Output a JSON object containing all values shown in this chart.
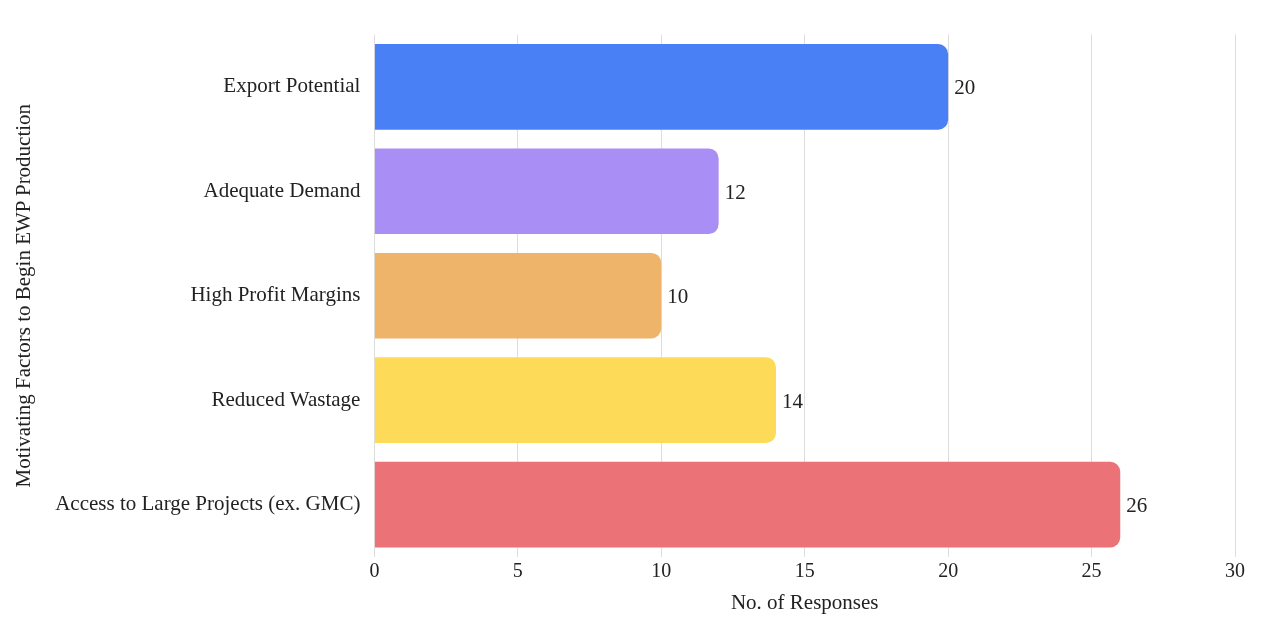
{
  "chart_data": {
    "type": "bar",
    "orientation": "horizontal",
    "categories": [
      "Export Potential",
      "Adequate Demand",
      "High Profit Margins",
      "Reduced Wastage",
      "Access to Large Projects (ex. GMC)"
    ],
    "values": [
      20,
      12,
      10,
      14,
      26
    ],
    "colors": [
      "#4a80f5",
      "#a98ef5",
      "#eeb46a",
      "#fddb58",
      "#eb7277"
    ],
    "xlim": [
      0,
      30
    ],
    "xticks": [
      0,
      5,
      10,
      15,
      20,
      25,
      30
    ],
    "xlabel": "No. of Responses",
    "ylabel": "Motivating Factors to Begin EWP Production",
    "grid": "x",
    "data_labels": true
  }
}
